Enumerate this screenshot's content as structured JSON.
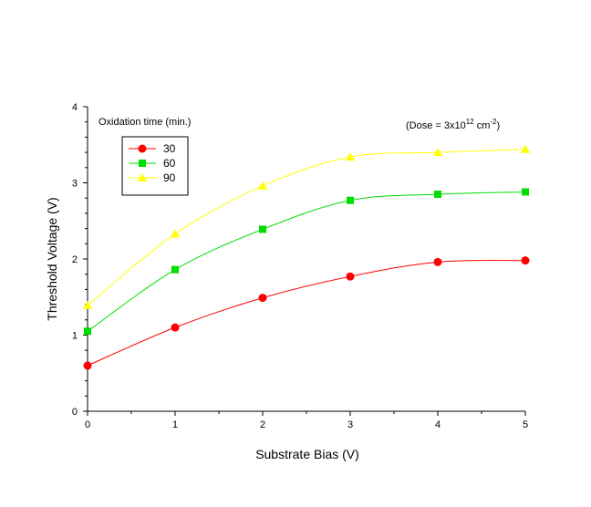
{
  "chart_data": {
    "type": "line",
    "x": [
      0,
      1,
      2,
      3,
      4,
      5
    ],
    "xlabel": "Substrate Bias (V)",
    "ylabel": "Threshold Voltage (V)",
    "xlim": [
      0,
      5
    ],
    "ylim": [
      0,
      4
    ],
    "xticks": [
      "0",
      "1",
      "2",
      "3",
      "4",
      "5"
    ],
    "yticks": [
      "0",
      "1",
      "2",
      "3",
      "4"
    ],
    "grid": false,
    "legend_title": "Oxidation time (min.)",
    "legend_position": "top-left",
    "annotation": {
      "prefix": "(Dose = 3x10",
      "exponent": "12",
      "middle": " cm",
      "unit_exponent": "-2",
      "suffix": ")"
    },
    "series": [
      {
        "name": "30",
        "color": "#ff0000",
        "marker": "circle",
        "values": [
          0.6,
          1.1,
          1.49,
          1.77,
          1.96,
          1.98
        ]
      },
      {
        "name": "60",
        "color": "#00dd00",
        "marker": "square",
        "values": [
          1.05,
          1.86,
          2.39,
          2.77,
          2.85,
          2.88
        ]
      },
      {
        "name": "90",
        "color": "#ffff00",
        "marker": "triangle",
        "values": [
          1.39,
          2.33,
          2.96,
          3.34,
          3.4,
          3.44
        ]
      }
    ]
  }
}
